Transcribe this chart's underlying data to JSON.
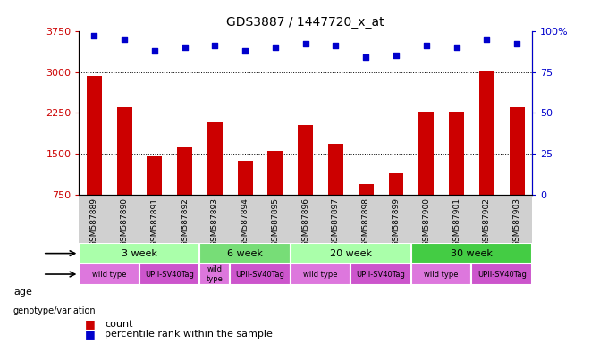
{
  "title": "GDS3887 / 1447720_x_at",
  "samples": [
    "GSM587889",
    "GSM587890",
    "GSM587891",
    "GSM587892",
    "GSM587893",
    "GSM587894",
    "GSM587895",
    "GSM587896",
    "GSM587897",
    "GSM587898",
    "GSM587899",
    "GSM587900",
    "GSM587901",
    "GSM587902",
    "GSM587903"
  ],
  "counts": [
    2920,
    2350,
    1460,
    1620,
    2080,
    1380,
    1560,
    2030,
    1680,
    960,
    1150,
    2280,
    2280,
    3030,
    2350
  ],
  "percentiles": [
    97,
    95,
    88,
    90,
    91,
    88,
    90,
    92,
    91,
    84,
    85,
    91,
    90,
    95,
    92
  ],
  "bar_color": "#cc0000",
  "dot_color": "#0000cc",
  "ylim_left": [
    750,
    3750
  ],
  "ylim_right": [
    0,
    100
  ],
  "yticks_left": [
    750,
    1500,
    2250,
    3000,
    3750
  ],
  "yticks_right": [
    0,
    25,
    50,
    75,
    100
  ],
  "age_groups": [
    {
      "label": "3 week",
      "start": 0,
      "end": 4,
      "color": "#aaffaa"
    },
    {
      "label": "6 week",
      "start": 4,
      "end": 7,
      "color": "#77dd77"
    },
    {
      "label": "20 week",
      "start": 7,
      "end": 11,
      "color": "#aaffaa"
    },
    {
      "label": "30 week",
      "start": 11,
      "end": 15,
      "color": "#44cc44"
    }
  ],
  "genotype_groups": [
    {
      "label": "wild type",
      "start": 0,
      "end": 2,
      "color": "#dd77dd"
    },
    {
      "label": "UPII-SV40Tag",
      "start": 2,
      "end": 4,
      "color": "#cc55cc"
    },
    {
      "label": "wild\ntype",
      "start": 4,
      "end": 5,
      "color": "#dd77dd"
    },
    {
      "label": "UPII-SV40Tag",
      "start": 5,
      "end": 7,
      "color": "#cc55cc"
    },
    {
      "label": "wild type",
      "start": 7,
      "end": 9,
      "color": "#dd77dd"
    },
    {
      "label": "UPII-SV40Tag",
      "start": 9,
      "end": 11,
      "color": "#cc55cc"
    },
    {
      "label": "wild type",
      "start": 11,
      "end": 13,
      "color": "#dd77dd"
    },
    {
      "label": "UPII-SV40Tag",
      "start": 13,
      "end": 15,
      "color": "#cc55cc"
    }
  ],
  "legend_count_color": "#cc0000",
  "legend_dot_color": "#0000cc",
  "bar_bottom": 750,
  "xtick_bg": "#d0d0d0",
  "xlabel_color": "#cc0000",
  "ylabel_right_color": "#0000cc"
}
